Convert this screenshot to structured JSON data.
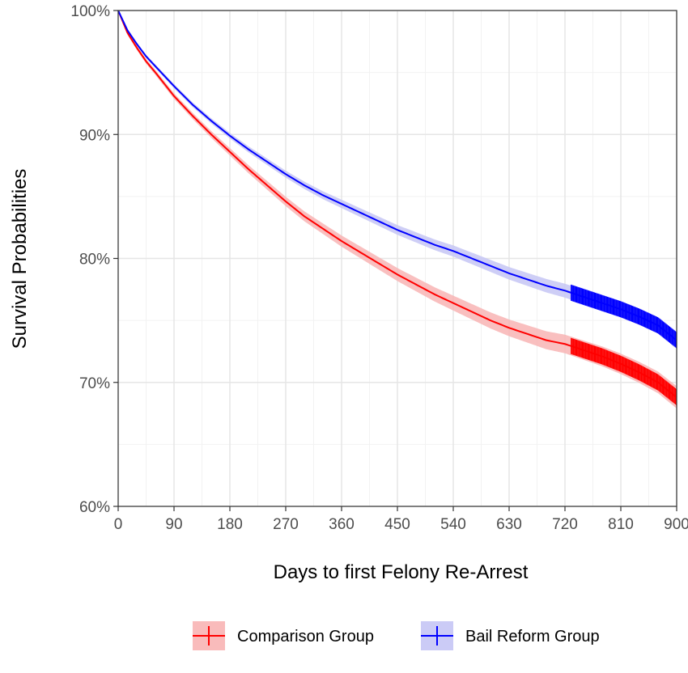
{
  "chart_data": {
    "type": "line",
    "title": "",
    "xlabel": "Days to first Felony Re-Arrest",
    "ylabel": "Survival Probabilities",
    "xlim": [
      0,
      900
    ],
    "ylim": [
      60,
      100
    ],
    "x_ticks": [
      0,
      90,
      180,
      270,
      360,
      450,
      540,
      630,
      720,
      810,
      900
    ],
    "y_ticks": [
      60,
      70,
      80,
      90,
      100
    ],
    "y_tick_labels": [
      "60%",
      "70%",
      "80%",
      "90%",
      "100%"
    ],
    "grid": true,
    "legend_position": "bottom",
    "confidence_band": true,
    "censor_marks_from_day": 730,
    "series": [
      {
        "name": "Comparison Group",
        "color": "#ff0000",
        "band_color": "#f8b4b4",
        "x": [
          0,
          15,
          30,
          45,
          60,
          90,
          120,
          150,
          180,
          210,
          240,
          270,
          300,
          330,
          360,
          390,
          420,
          450,
          480,
          510,
          540,
          570,
          600,
          630,
          660,
          690,
          720,
          750,
          780,
          810,
          840,
          870,
          900
        ],
        "y": [
          100,
          98.2,
          97.0,
          95.9,
          95.0,
          93.1,
          91.5,
          90.0,
          88.6,
          87.2,
          85.9,
          84.6,
          83.4,
          82.4,
          81.4,
          80.5,
          79.6,
          78.7,
          77.9,
          77.1,
          76.4,
          75.7,
          75.0,
          74.4,
          73.9,
          73.4,
          73.1,
          72.6,
          72.1,
          71.5,
          70.8,
          70.0,
          68.8
        ]
      },
      {
        "name": "Bail Reform Group",
        "color": "#0000ff",
        "band_color": "#c5c5f5",
        "x": [
          0,
          15,
          30,
          45,
          60,
          90,
          120,
          150,
          180,
          210,
          240,
          270,
          300,
          330,
          360,
          390,
          420,
          450,
          480,
          510,
          540,
          570,
          600,
          630,
          660,
          690,
          720,
          750,
          780,
          810,
          840,
          870,
          900
        ],
        "y": [
          100,
          98.4,
          97.3,
          96.3,
          95.5,
          93.9,
          92.4,
          91.1,
          89.9,
          88.8,
          87.8,
          86.8,
          85.9,
          85.1,
          84.4,
          83.7,
          83.0,
          82.3,
          81.7,
          81.1,
          80.6,
          80.0,
          79.4,
          78.8,
          78.3,
          77.8,
          77.4,
          76.9,
          76.4,
          75.9,
          75.3,
          74.6,
          73.4
        ]
      }
    ]
  }
}
